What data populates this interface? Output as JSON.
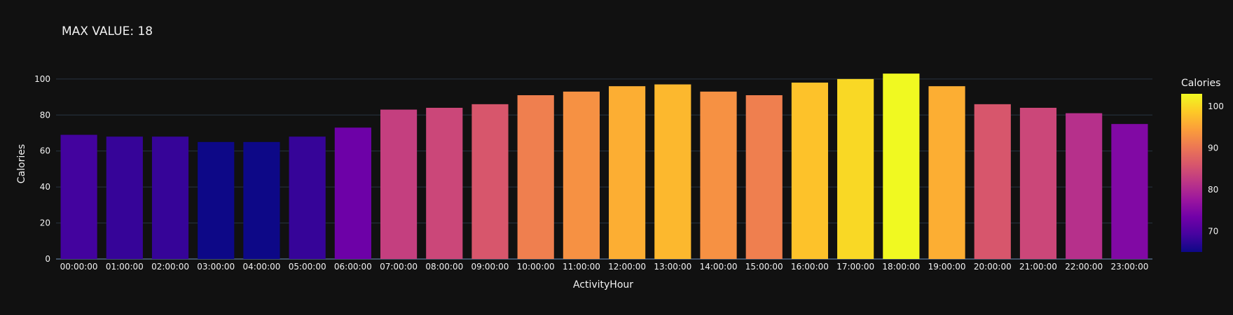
{
  "chart_data": {
    "type": "bar",
    "title": "MAX VALUE: 18",
    "xlabel": "ActivityHour",
    "ylabel": "Calories",
    "categories": [
      "00:00:00",
      "01:00:00",
      "02:00:00",
      "03:00:00",
      "04:00:00",
      "05:00:00",
      "06:00:00",
      "07:00:00",
      "08:00:00",
      "09:00:00",
      "10:00:00",
      "11:00:00",
      "12:00:00",
      "13:00:00",
      "14:00:00",
      "15:00:00",
      "16:00:00",
      "17:00:00",
      "18:00:00",
      "19:00:00",
      "20:00:00",
      "21:00:00",
      "22:00:00",
      "23:00:00"
    ],
    "values": [
      69,
      68,
      68,
      65,
      65,
      68,
      73,
      83,
      84,
      86,
      91,
      93,
      96,
      97,
      93,
      91,
      98,
      100,
      103,
      96,
      86,
      84,
      81,
      75
    ],
    "ylim": [
      0,
      105
    ],
    "yticks": [
      0,
      20,
      40,
      60,
      80,
      100
    ],
    "grid": true,
    "colorbar": {
      "title": "Calories",
      "range": [
        65,
        103
      ],
      "ticks": [
        70,
        80,
        90,
        100
      ],
      "colorscale": "Plasma"
    }
  },
  "colors": {
    "background": "#111111",
    "grid": "#283442",
    "text": "#f2f2f2",
    "plasma": [
      "#0d0887",
      "#46039f",
      "#7201a8",
      "#9c179e",
      "#bd3786",
      "#d8576b",
      "#ed7953",
      "#fb9f3a",
      "#fdca26",
      "#f0f921"
    ]
  }
}
